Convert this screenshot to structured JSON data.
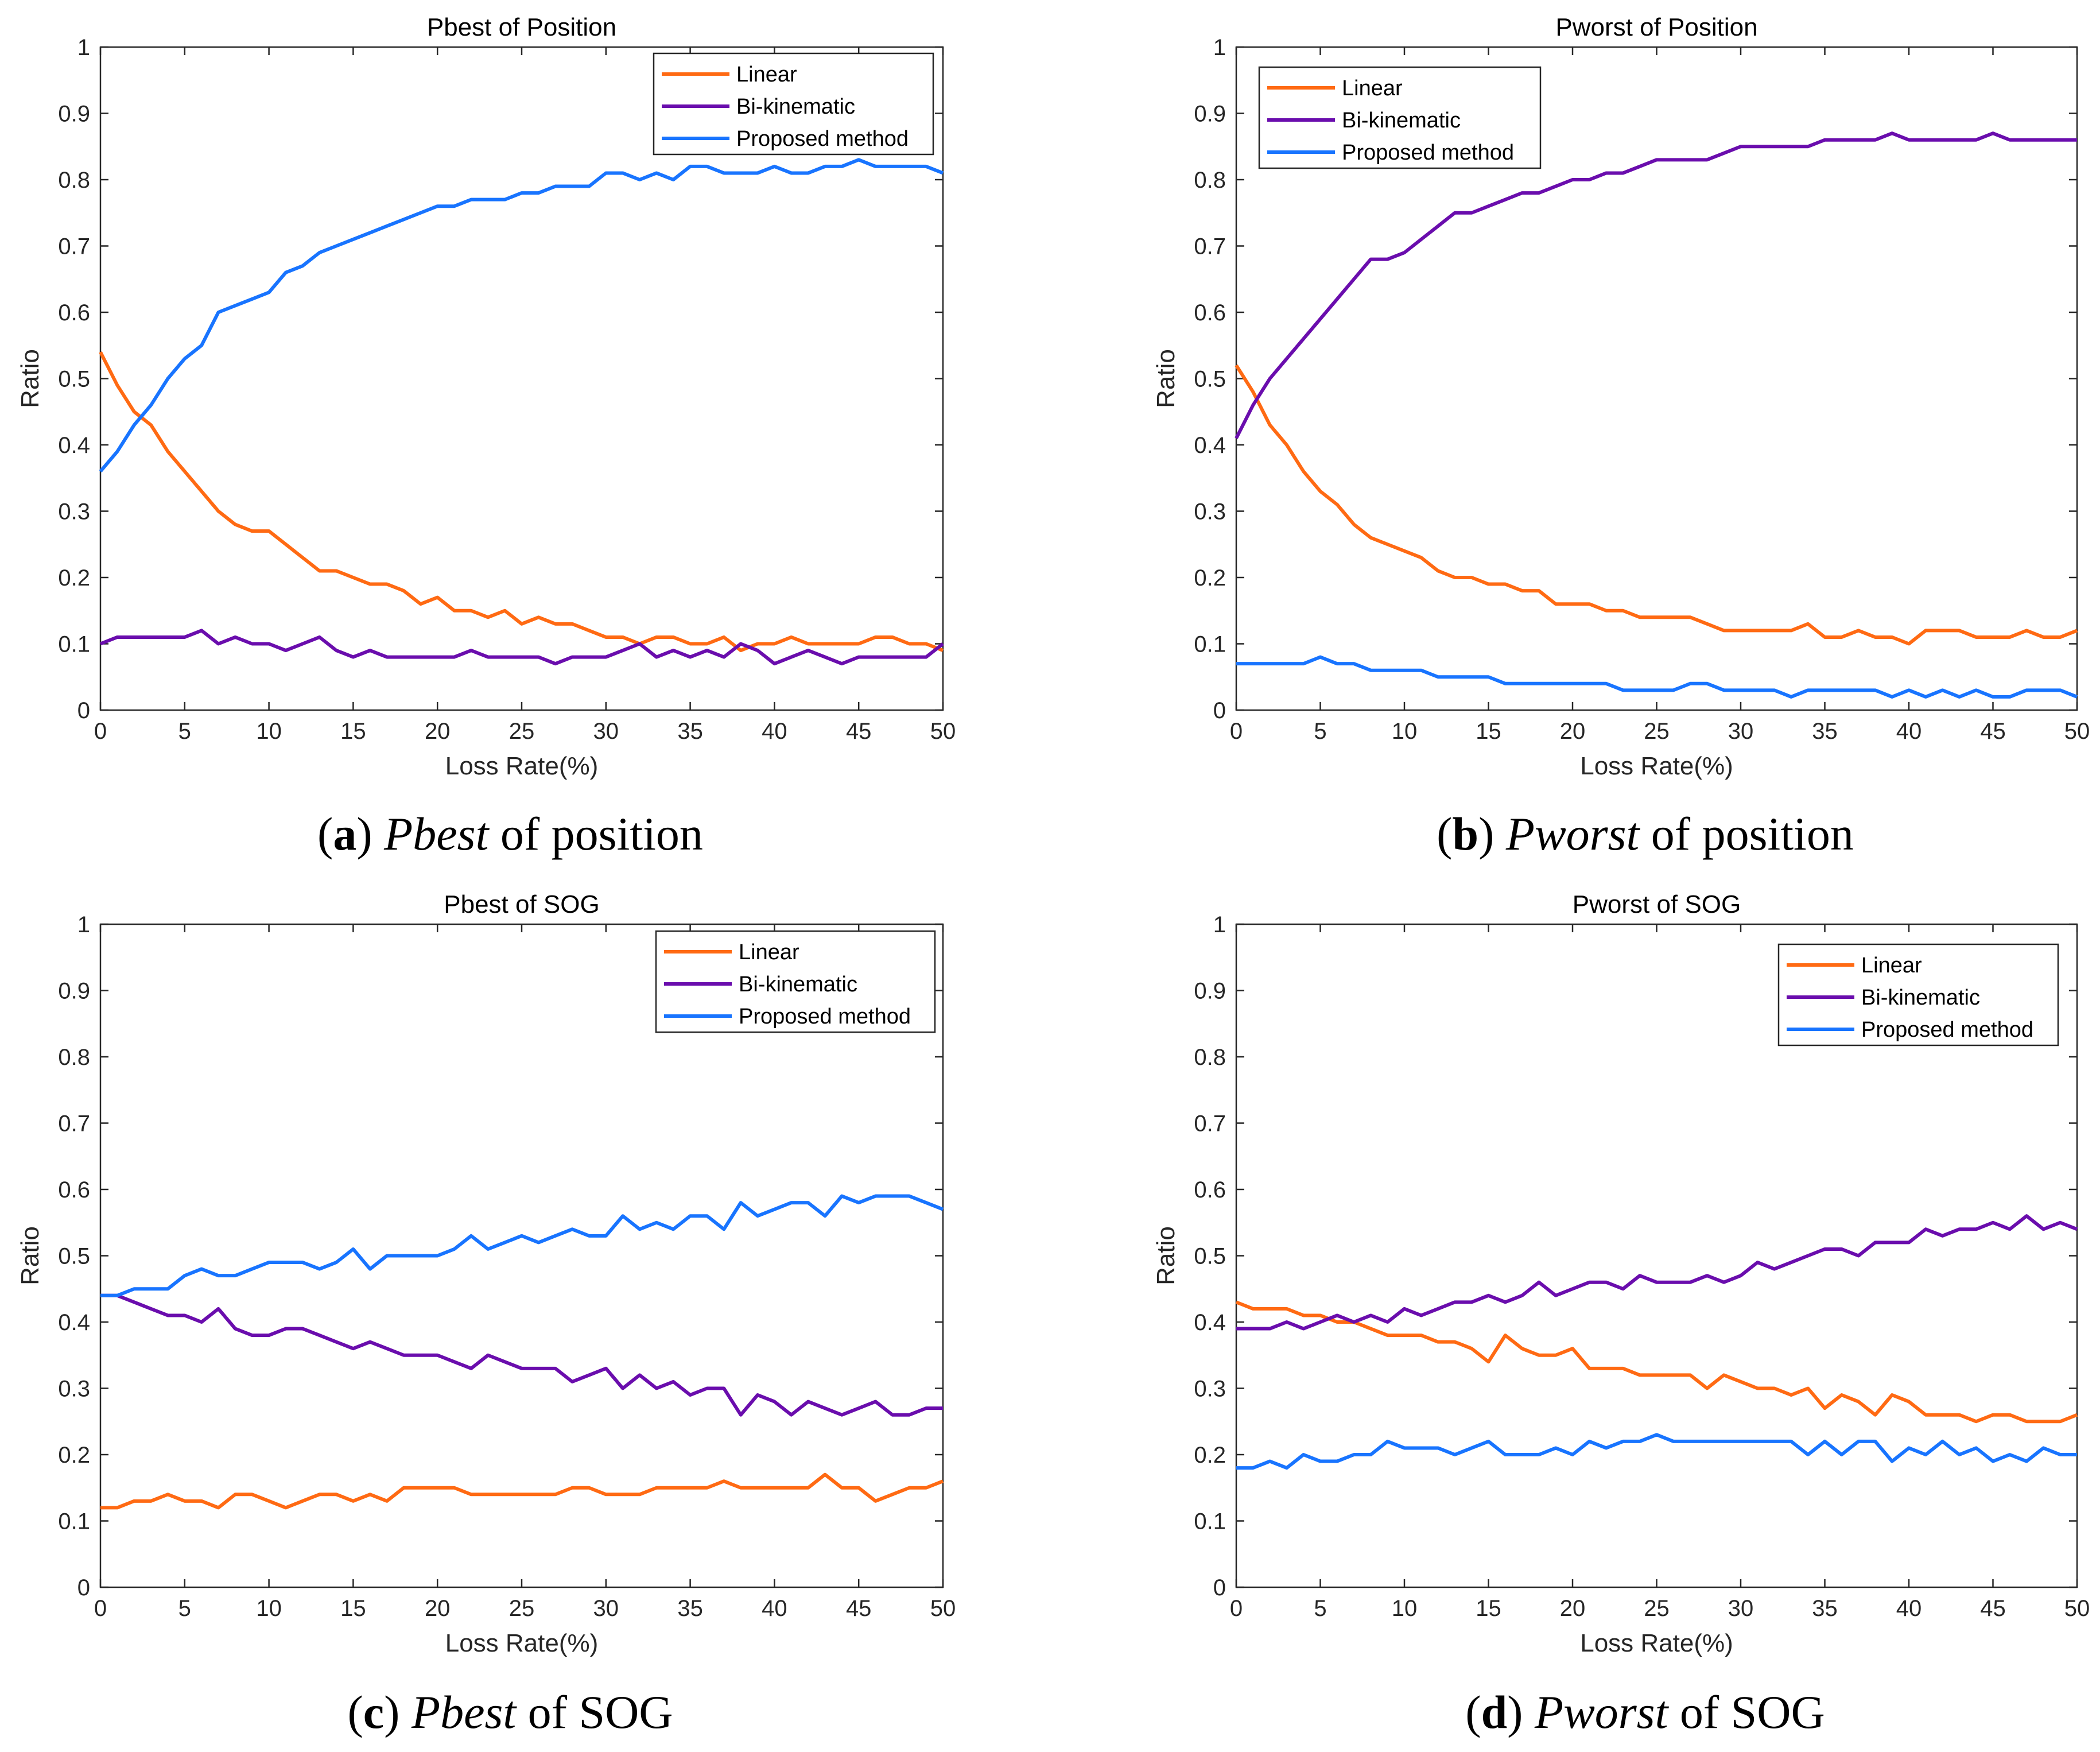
{
  "colors": {
    "linear": "#ff6a13",
    "bi_kinematic": "#6a0dad",
    "proposed": "#1874ff"
  },
  "chart_data": [
    {
      "type": "line",
      "title": "Pbest of Position",
      "xlabel": "Loss Rate(%)",
      "ylabel": "Ratio",
      "xlim": [
        0,
        50
      ],
      "ylim": [
        0,
        1
      ],
      "grid": false,
      "legend": "top-right",
      "xticks": [
        0,
        5,
        10,
        15,
        20,
        25,
        30,
        35,
        40,
        45,
        50
      ],
      "yticks": [
        0,
        0.1,
        0.2,
        0.3,
        0.4,
        0.5,
        0.6,
        0.7,
        0.8,
        0.9,
        1
      ],
      "caption": {
        "letter": "a",
        "term": "Pbest",
        "rest": " of position"
      },
      "series": [
        {
          "name": "Linear",
          "color": "#ff6a13",
          "values": [
            0.54,
            0.49,
            0.45,
            0.43,
            0.39,
            0.36,
            0.33,
            0.3,
            0.28,
            0.27,
            0.27,
            0.25,
            0.23,
            0.21,
            0.21,
            0.2,
            0.19,
            0.19,
            0.18,
            0.16,
            0.17,
            0.15,
            0.15,
            0.14,
            0.15,
            0.13,
            0.14,
            0.13,
            0.13,
            0.12,
            0.11,
            0.11,
            0.1,
            0.11,
            0.11,
            0.1,
            0.1,
            0.11,
            0.09,
            0.1,
            0.1,
            0.11,
            0.1,
            0.1,
            0.1,
            0.1,
            0.11,
            0.11,
            0.1,
            0.1,
            0.09
          ]
        },
        {
          "name": "Bi-kinematic",
          "color": "#6a0dad",
          "values": [
            0.1,
            0.11,
            0.11,
            0.11,
            0.11,
            0.11,
            0.12,
            0.1,
            0.11,
            0.1,
            0.1,
            0.09,
            0.1,
            0.11,
            0.09,
            0.08,
            0.09,
            0.08,
            0.08,
            0.08,
            0.08,
            0.08,
            0.09,
            0.08,
            0.08,
            0.08,
            0.08,
            0.07,
            0.08,
            0.08,
            0.08,
            0.09,
            0.1,
            0.08,
            0.09,
            0.08,
            0.09,
            0.08,
            0.1,
            0.09,
            0.07,
            0.08,
            0.09,
            0.08,
            0.07,
            0.08,
            0.08,
            0.08,
            0.08,
            0.08,
            0.1
          ]
        },
        {
          "name": "Proposed method",
          "color": "#1874ff",
          "values": [
            0.36,
            0.39,
            0.43,
            0.46,
            0.5,
            0.53,
            0.55,
            0.6,
            0.61,
            0.62,
            0.63,
            0.66,
            0.67,
            0.69,
            0.7,
            0.71,
            0.72,
            0.73,
            0.74,
            0.75,
            0.76,
            0.76,
            0.77,
            0.77,
            0.77,
            0.78,
            0.78,
            0.79,
            0.79,
            0.79,
            0.81,
            0.81,
            0.8,
            0.81,
            0.8,
            0.82,
            0.82,
            0.81,
            0.81,
            0.81,
            0.82,
            0.81,
            0.81,
            0.82,
            0.82,
            0.83,
            0.82,
            0.82,
            0.82,
            0.82,
            0.81
          ]
        }
      ]
    },
    {
      "type": "line",
      "title": "Pworst of Position",
      "xlabel": "Loss Rate(%)",
      "ylabel": "Ratio",
      "xlim": [
        0,
        50
      ],
      "ylim": [
        0,
        1
      ],
      "grid": false,
      "legend": "top-left",
      "xticks": [
        0,
        5,
        10,
        15,
        20,
        25,
        30,
        35,
        40,
        45,
        50
      ],
      "yticks": [
        0,
        0.1,
        0.2,
        0.3,
        0.4,
        0.5,
        0.6,
        0.7,
        0.8,
        0.9,
        1
      ],
      "caption": {
        "letter": "b",
        "term": "Pworst",
        "rest": " of position"
      },
      "series": [
        {
          "name": "Linear",
          "color": "#ff6a13",
          "values": [
            0.52,
            0.48,
            0.43,
            0.4,
            0.36,
            0.33,
            0.31,
            0.28,
            0.26,
            0.25,
            0.24,
            0.23,
            0.21,
            0.2,
            0.2,
            0.19,
            0.19,
            0.18,
            0.18,
            0.16,
            0.16,
            0.16,
            0.15,
            0.15,
            0.14,
            0.14,
            0.14,
            0.14,
            0.13,
            0.12,
            0.12,
            0.12,
            0.12,
            0.12,
            0.13,
            0.11,
            0.11,
            0.12,
            0.11,
            0.11,
            0.1,
            0.12,
            0.12,
            0.12,
            0.11,
            0.11,
            0.11,
            0.12,
            0.11,
            0.11,
            0.12
          ]
        },
        {
          "name": "Bi-kinematic",
          "color": "#6a0dad",
          "values": [
            0.41,
            0.46,
            0.5,
            0.53,
            0.56,
            0.59,
            0.62,
            0.65,
            0.68,
            0.68,
            0.69,
            0.71,
            0.73,
            0.75,
            0.75,
            0.76,
            0.77,
            0.78,
            0.78,
            0.79,
            0.8,
            0.8,
            0.81,
            0.81,
            0.82,
            0.83,
            0.83,
            0.83,
            0.83,
            0.84,
            0.85,
            0.85,
            0.85,
            0.85,
            0.85,
            0.86,
            0.86,
            0.86,
            0.86,
            0.87,
            0.86,
            0.86,
            0.86,
            0.86,
            0.86,
            0.87,
            0.86,
            0.86,
            0.86,
            0.86,
            0.86
          ]
        },
        {
          "name": "Proposed method",
          "color": "#1874ff",
          "values": [
            0.07,
            0.07,
            0.07,
            0.07,
            0.07,
            0.08,
            0.07,
            0.07,
            0.06,
            0.06,
            0.06,
            0.06,
            0.05,
            0.05,
            0.05,
            0.05,
            0.04,
            0.04,
            0.04,
            0.04,
            0.04,
            0.04,
            0.04,
            0.03,
            0.03,
            0.03,
            0.03,
            0.04,
            0.04,
            0.03,
            0.03,
            0.03,
            0.03,
            0.02,
            0.03,
            0.03,
            0.03,
            0.03,
            0.03,
            0.02,
            0.03,
            0.02,
            0.03,
            0.02,
            0.03,
            0.02,
            0.02,
            0.03,
            0.03,
            0.03,
            0.02
          ]
        }
      ]
    },
    {
      "type": "line",
      "title": "Pbest of SOG",
      "xlabel": "Loss Rate(%)",
      "ylabel": "Ratio",
      "xlim": [
        0,
        50
      ],
      "ylim": [
        0,
        1
      ],
      "grid": false,
      "legend": "top-right",
      "xticks": [
        0,
        5,
        10,
        15,
        20,
        25,
        30,
        35,
        40,
        45,
        50
      ],
      "yticks": [
        0,
        0.1,
        0.2,
        0.3,
        0.4,
        0.5,
        0.6,
        0.7,
        0.8,
        0.9,
        1
      ],
      "caption": {
        "letter": "c",
        "term": "Pbest",
        "rest": " of SOG"
      },
      "series": [
        {
          "name": "Linear",
          "color": "#ff6a13",
          "values": [
            0.12,
            0.12,
            0.13,
            0.13,
            0.14,
            0.13,
            0.13,
            0.12,
            0.14,
            0.14,
            0.13,
            0.12,
            0.13,
            0.14,
            0.14,
            0.13,
            0.14,
            0.13,
            0.15,
            0.15,
            0.15,
            0.15,
            0.14,
            0.14,
            0.14,
            0.14,
            0.14,
            0.14,
            0.15,
            0.15,
            0.14,
            0.14,
            0.14,
            0.15,
            0.15,
            0.15,
            0.15,
            0.16,
            0.15,
            0.15,
            0.15,
            0.15,
            0.15,
            0.17,
            0.15,
            0.15,
            0.13,
            0.14,
            0.15,
            0.15,
            0.16
          ]
        },
        {
          "name": "Bi-kinematic",
          "color": "#6a0dad",
          "values": [
            0.44,
            0.44,
            0.43,
            0.42,
            0.41,
            0.41,
            0.4,
            0.42,
            0.39,
            0.38,
            0.38,
            0.39,
            0.39,
            0.38,
            0.37,
            0.36,
            0.37,
            0.36,
            0.35,
            0.35,
            0.35,
            0.34,
            0.33,
            0.35,
            0.34,
            0.33,
            0.33,
            0.33,
            0.31,
            0.32,
            0.33,
            0.3,
            0.32,
            0.3,
            0.31,
            0.29,
            0.3,
            0.3,
            0.26,
            0.29,
            0.28,
            0.26,
            0.28,
            0.27,
            0.26,
            0.27,
            0.28,
            0.26,
            0.26,
            0.27,
            0.27
          ]
        },
        {
          "name": "Proposed method",
          "color": "#1874ff",
          "values": [
            0.44,
            0.44,
            0.45,
            0.45,
            0.45,
            0.47,
            0.48,
            0.47,
            0.47,
            0.48,
            0.49,
            0.49,
            0.49,
            0.48,
            0.49,
            0.51,
            0.48,
            0.5,
            0.5,
            0.5,
            0.5,
            0.51,
            0.53,
            0.51,
            0.52,
            0.53,
            0.52,
            0.53,
            0.54,
            0.53,
            0.53,
            0.56,
            0.54,
            0.55,
            0.54,
            0.56,
            0.56,
            0.54,
            0.58,
            0.56,
            0.57,
            0.58,
            0.58,
            0.56,
            0.59,
            0.58,
            0.59,
            0.59,
            0.59,
            0.58,
            0.57
          ]
        }
      ]
    },
    {
      "type": "line",
      "title": "Pworst of SOG",
      "xlabel": "Loss Rate(%)",
      "ylabel": "Ratio",
      "xlim": [
        0,
        50
      ],
      "ylim": [
        0,
        1
      ],
      "grid": false,
      "legend": "top-right",
      "xticks": [
        0,
        5,
        10,
        15,
        20,
        25,
        30,
        35,
        40,
        45,
        50
      ],
      "yticks": [
        0,
        0.1,
        0.2,
        0.3,
        0.4,
        0.5,
        0.6,
        0.7,
        0.8,
        0.9,
        1
      ],
      "caption": {
        "letter": "d",
        "term": "Pworst",
        "rest": " of SOG"
      },
      "series": [
        {
          "name": "Linear",
          "color": "#ff6a13",
          "values": [
            0.43,
            0.42,
            0.42,
            0.42,
            0.41,
            0.41,
            0.4,
            0.4,
            0.39,
            0.38,
            0.38,
            0.38,
            0.37,
            0.37,
            0.36,
            0.34,
            0.38,
            0.36,
            0.35,
            0.35,
            0.36,
            0.33,
            0.33,
            0.33,
            0.32,
            0.32,
            0.32,
            0.32,
            0.3,
            0.32,
            0.31,
            0.3,
            0.3,
            0.29,
            0.3,
            0.27,
            0.29,
            0.28,
            0.26,
            0.29,
            0.28,
            0.26,
            0.26,
            0.26,
            0.25,
            0.26,
            0.26,
            0.25,
            0.25,
            0.25,
            0.26
          ]
        },
        {
          "name": "Bi-kinematic",
          "color": "#6a0dad",
          "values": [
            0.39,
            0.39,
            0.39,
            0.4,
            0.39,
            0.4,
            0.41,
            0.4,
            0.41,
            0.4,
            0.42,
            0.41,
            0.42,
            0.43,
            0.43,
            0.44,
            0.43,
            0.44,
            0.46,
            0.44,
            0.45,
            0.46,
            0.46,
            0.45,
            0.47,
            0.46,
            0.46,
            0.46,
            0.47,
            0.46,
            0.47,
            0.49,
            0.48,
            0.49,
            0.5,
            0.51,
            0.51,
            0.5,
            0.52,
            0.52,
            0.52,
            0.54,
            0.53,
            0.54,
            0.54,
            0.55,
            0.54,
            0.56,
            0.54,
            0.55,
            0.54
          ]
        },
        {
          "name": "Proposed method",
          "color": "#1874ff",
          "values": [
            0.18,
            0.18,
            0.19,
            0.18,
            0.2,
            0.19,
            0.19,
            0.2,
            0.2,
            0.22,
            0.21,
            0.21,
            0.21,
            0.2,
            0.21,
            0.22,
            0.2,
            0.2,
            0.2,
            0.21,
            0.2,
            0.22,
            0.21,
            0.22,
            0.22,
            0.23,
            0.22,
            0.22,
            0.22,
            0.22,
            0.22,
            0.22,
            0.22,
            0.22,
            0.2,
            0.22,
            0.2,
            0.22,
            0.22,
            0.19,
            0.21,
            0.2,
            0.22,
            0.2,
            0.21,
            0.19,
            0.2,
            0.19,
            0.21,
            0.2,
            0.2
          ]
        }
      ]
    }
  ]
}
